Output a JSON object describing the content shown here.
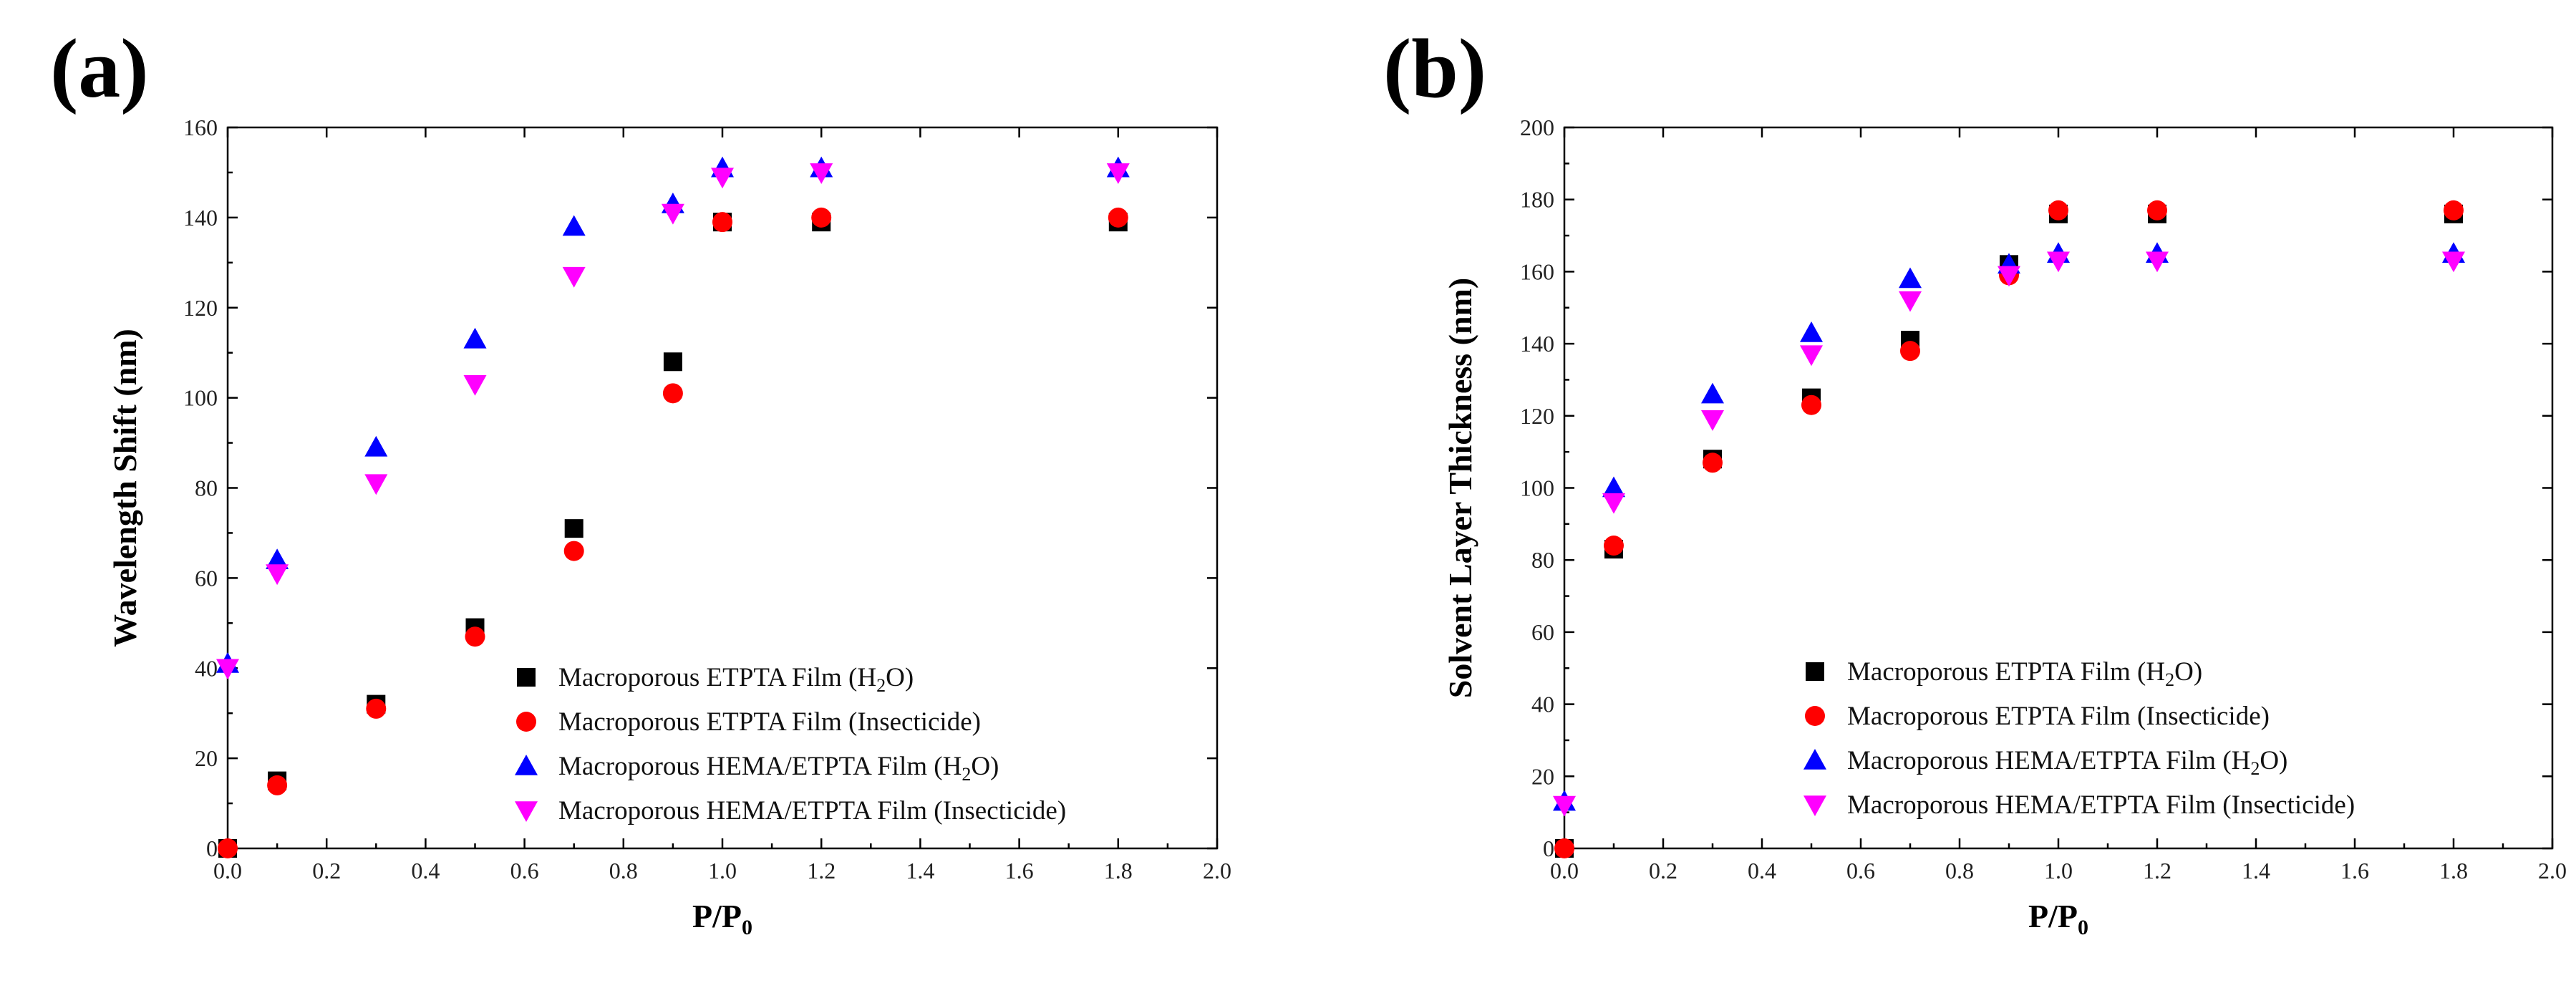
{
  "chart_data": [
    {
      "type": "scatter",
      "panel_label": "(a)",
      "title": "",
      "xlabel_main": "P/P",
      "xlabel_sub": "0",
      "ylabel": "Wavelength  Shift (nm)",
      "xlim": [
        0,
        2.0
      ],
      "ylim": [
        0,
        160
      ],
      "x_ticks": [
        "0.0",
        "0.2",
        "0.4",
        "0.6",
        "0.8",
        "1.0",
        "1.2",
        "1.4",
        "1.6",
        "1.8",
        "2.0"
      ],
      "y_ticks": [
        "0",
        "20",
        "40",
        "60",
        "80",
        "100",
        "120",
        "140",
        "160"
      ],
      "legend_position": "bottom-right",
      "series": [
        {
          "name_main": "Macroporous ETPTA Film (H",
          "name_sub": "2",
          "name_tail": "O)",
          "marker": "square",
          "color": "#000000",
          "x": [
            0,
            0.1,
            0.3,
            0.5,
            0.7,
            0.9,
            1.0,
            1.2,
            1.8
          ],
          "y": [
            0,
            15,
            32,
            49,
            71,
            108,
            139,
            139,
            139
          ]
        },
        {
          "name_main": "Macroporous ETPTA Film (Insecticide)",
          "name_sub": "",
          "name_tail": "",
          "marker": "circle",
          "color": "#ff0000",
          "x": [
            0,
            0.1,
            0.3,
            0.5,
            0.7,
            0.9,
            1.0,
            1.2,
            1.8
          ],
          "y": [
            0,
            14,
            31,
            47,
            66,
            101,
            139,
            140,
            140
          ]
        },
        {
          "name_main": "Macroporous HEMA/ETPTA Film (H",
          "name_sub": "2",
          "name_tail": "O)",
          "marker": "triangle-up",
          "color": "#0000ff",
          "x": [
            0,
            0.1,
            0.3,
            0.5,
            0.7,
            0.9,
            1.0,
            1.2,
            1.8
          ],
          "y": [
            41,
            64,
            89,
            113,
            138,
            143,
            151,
            151,
            151
          ]
        },
        {
          "name_main": "Macroporous HEMA/ETPTA Film (Insecticide)",
          "name_sub": "",
          "name_tail": "",
          "marker": "triangle-down",
          "color": "#ff00ff",
          "x": [
            0,
            0.1,
            0.3,
            0.5,
            0.7,
            0.9,
            1.0,
            1.2,
            1.8
          ],
          "y": [
            40,
            61,
            81,
            103,
            127,
            141,
            149,
            150,
            150
          ]
        }
      ]
    },
    {
      "type": "scatter",
      "panel_label": "(b)",
      "title": "",
      "xlabel_main": "P/P",
      "xlabel_sub": "0",
      "ylabel": "Solvent Layer Thickness  (nm)",
      "xlim": [
        0,
        2.0
      ],
      "ylim": [
        0,
        200
      ],
      "x_ticks": [
        "0.0",
        "0.2",
        "0.4",
        "0.6",
        "0.8",
        "1.0",
        "1.2",
        "1.4",
        "1.6",
        "1.8",
        "2.0"
      ],
      "y_ticks": [
        "0",
        "20",
        "40",
        "60",
        "80",
        "100",
        "120",
        "140",
        "160",
        "180",
        "200"
      ],
      "legend_position": "bottom-right",
      "series": [
        {
          "name_main": "Macroporous ETPTA Film (H",
          "name_sub": "2",
          "name_tail": "O)",
          "marker": "square",
          "color": "#000000",
          "x": [
            0,
            0.1,
            0.3,
            0.5,
            0.7,
            0.9,
            1.0,
            1.2,
            1.8
          ],
          "y": [
            0,
            83,
            108,
            125,
            141,
            162,
            176,
            176,
            176
          ]
        },
        {
          "name_main": "Macroporous ETPTA Film (Insecticide)",
          "name_sub": "",
          "name_tail": "",
          "marker": "circle",
          "color": "#ff0000",
          "x": [
            0,
            0.1,
            0.3,
            0.5,
            0.7,
            0.9,
            1.0,
            1.2,
            1.8
          ],
          "y": [
            0,
            84,
            107,
            123,
            138,
            159,
            177,
            177,
            177
          ]
        },
        {
          "name_main": "Macroporous HEMA/ETPTA Film (H",
          "name_sub": "2",
          "name_tail": "O)",
          "marker": "triangle-up",
          "color": "#0000ff",
          "x": [
            0,
            0.1,
            0.3,
            0.5,
            0.7,
            0.9,
            1.0,
            1.2,
            1.8
          ],
          "y": [
            13,
            100,
            126,
            143,
            158,
            162,
            165,
            165,
            165
          ]
        },
        {
          "name_main": "Macroporous HEMA/ETPTA Film (Insecticide)",
          "name_sub": "",
          "name_tail": "",
          "marker": "triangle-down",
          "color": "#ff00ff",
          "x": [
            0,
            0.1,
            0.3,
            0.5,
            0.7,
            0.9,
            1.0,
            1.2,
            1.8
          ],
          "y": [
            12,
            96,
            119,
            137,
            152,
            159,
            163,
            163,
            163
          ]
        }
      ]
    }
  ]
}
